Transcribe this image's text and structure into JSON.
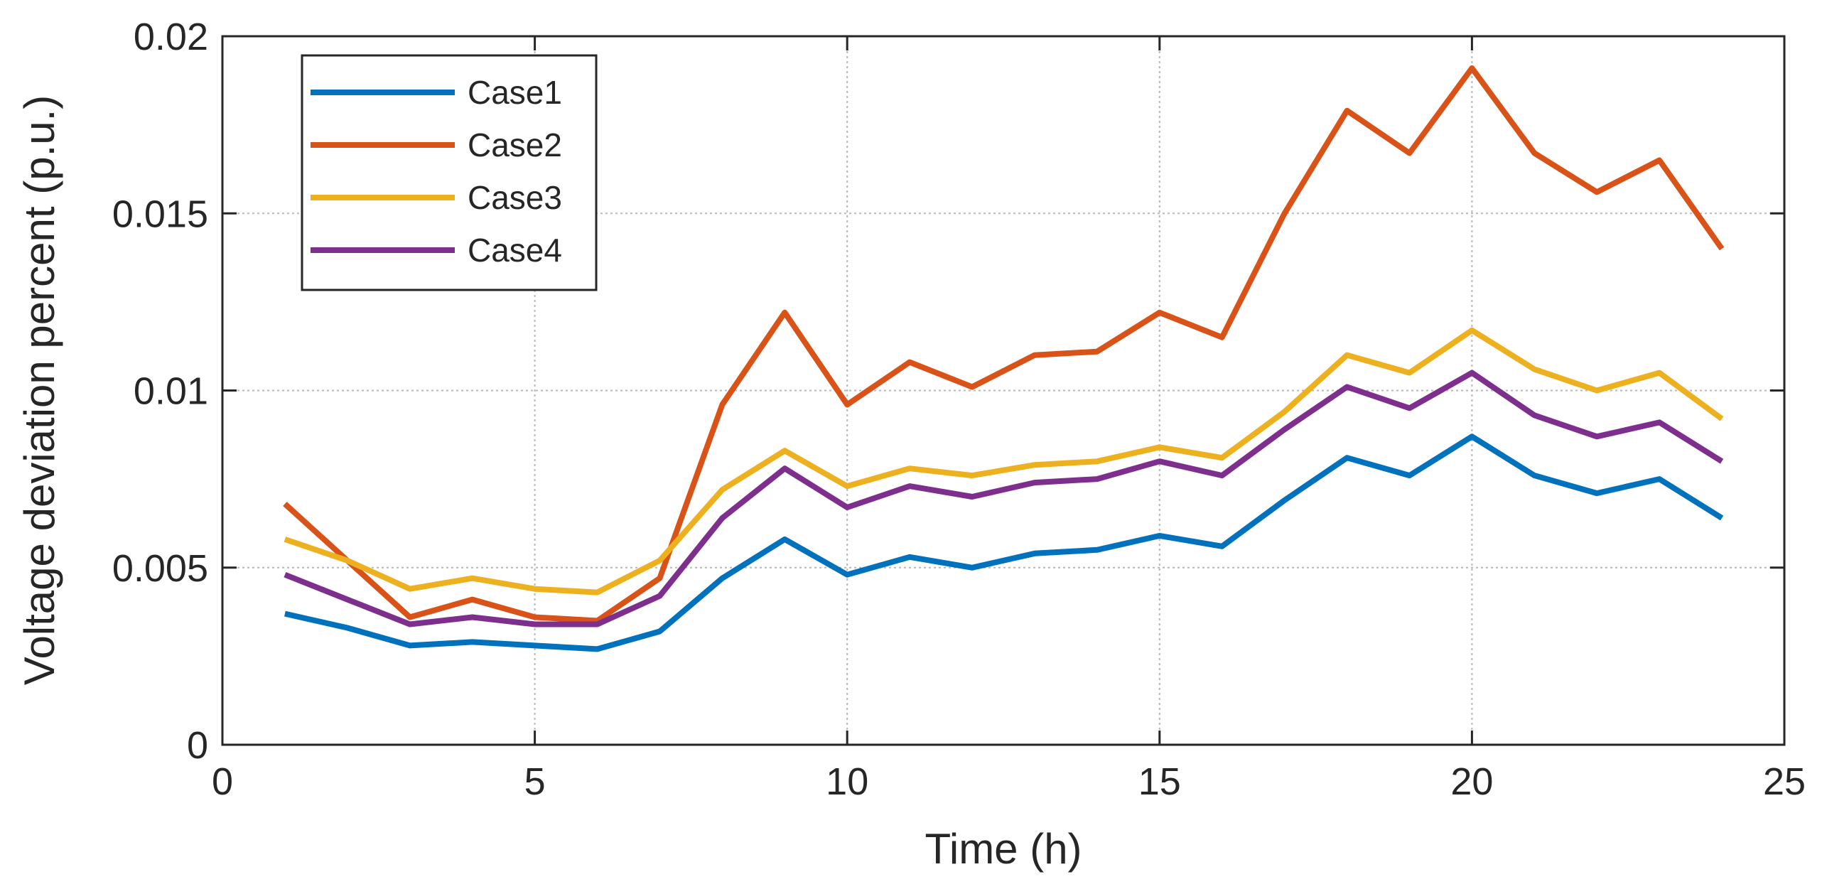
{
  "chart_data": {
    "type": "line",
    "title": "",
    "xlabel": "Time (h)",
    "ylabel": "Voltage deviation percent (p.u.)",
    "xlim": [
      0,
      25
    ],
    "ylim": [
      0,
      0.02
    ],
    "xticks": [
      0,
      5,
      10,
      15,
      20,
      25
    ],
    "xtick_labels": [
      "0",
      "5",
      "10",
      "15",
      "20",
      "25"
    ],
    "yticks": [
      0,
      0.005,
      0.01,
      0.015,
      0.02
    ],
    "ytick_labels": [
      "0",
      "0.005",
      "0.01",
      "0.015",
      "0.02"
    ],
    "grid": true,
    "legend_position": "top-left",
    "x": [
      1,
      2,
      3,
      4,
      5,
      6,
      7,
      8,
      9,
      10,
      11,
      12,
      13,
      14,
      15,
      16,
      17,
      18,
      19,
      20,
      21,
      22,
      23,
      24
    ],
    "series": [
      {
        "name": "Case1",
        "color": "#0072BD",
        "values": [
          0.0037,
          0.0033,
          0.0028,
          0.0029,
          0.0028,
          0.0027,
          0.0032,
          0.0047,
          0.0058,
          0.0048,
          0.0053,
          0.005,
          0.0054,
          0.0055,
          0.0059,
          0.0056,
          0.0069,
          0.0081,
          0.0076,
          0.0087,
          0.0076,
          0.0071,
          0.0075,
          0.0064
        ]
      },
      {
        "name": "Case2",
        "color": "#D95319",
        "values": [
          0.0068,
          0.0052,
          0.0036,
          0.0041,
          0.0036,
          0.0035,
          0.0047,
          0.0096,
          0.0122,
          0.0096,
          0.0108,
          0.0101,
          0.011,
          0.0111,
          0.0122,
          0.0115,
          0.015,
          0.0179,
          0.0167,
          0.0191,
          0.0167,
          0.0156,
          0.0165,
          0.014
        ]
      },
      {
        "name": "Case3",
        "color": "#EDB120",
        "values": [
          0.0058,
          0.0052,
          0.0044,
          0.0047,
          0.0044,
          0.0043,
          0.0052,
          0.0072,
          0.0083,
          0.0073,
          0.0078,
          0.0076,
          0.0079,
          0.008,
          0.0084,
          0.0081,
          0.0094,
          0.011,
          0.0105,
          0.0117,
          0.0106,
          0.01,
          0.0105,
          0.0092
        ]
      },
      {
        "name": "Case4",
        "color": "#7E2F8E",
        "values": [
          0.0048,
          0.0041,
          0.0034,
          0.0036,
          0.0034,
          0.0034,
          0.0042,
          0.0064,
          0.0078,
          0.0067,
          0.0073,
          0.007,
          0.0074,
          0.0075,
          0.008,
          0.0076,
          0.0089,
          0.0101,
          0.0095,
          0.0105,
          0.0093,
          0.0087,
          0.0091,
          0.008
        ]
      }
    ]
  }
}
